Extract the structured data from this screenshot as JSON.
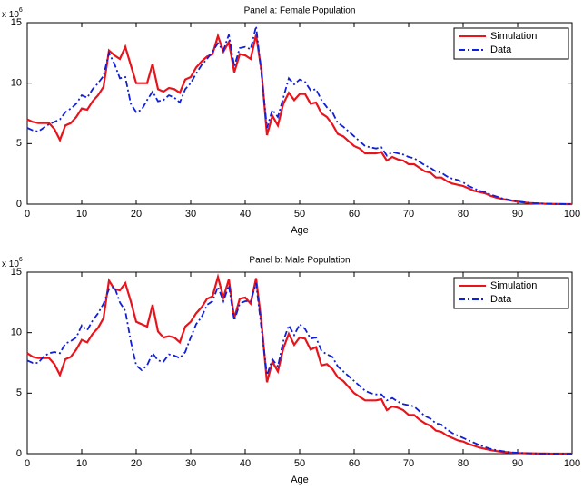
{
  "chart_data": [
    {
      "type": "line",
      "title": "Panel a: Female Population",
      "xlabel": "Age",
      "y_multiplier": {
        "base": "x 10",
        "exponent": "6"
      },
      "xlim": [
        0,
        100
      ],
      "xticks": [
        0,
        10,
        20,
        30,
        40,
        50,
        60,
        70,
        80,
        90,
        100
      ],
      "ylim": [
        0,
        15
      ],
      "yticks": [
        0,
        5,
        10,
        15
      ],
      "legend": "upper right",
      "x": [
        0,
        1,
        2,
        3,
        4,
        5,
        6,
        7,
        8,
        9,
        10,
        11,
        12,
        13,
        14,
        15,
        16,
        17,
        18,
        19,
        20,
        21,
        22,
        23,
        24,
        25,
        26,
        27,
        28,
        29,
        30,
        31,
        32,
        33,
        34,
        35,
        36,
        37,
        38,
        39,
        40,
        41,
        42,
        43,
        44,
        45,
        46,
        47,
        48,
        49,
        50,
        51,
        52,
        53,
        54,
        55,
        56,
        57,
        58,
        59,
        60,
        61,
        62,
        63,
        64,
        65,
        66,
        67,
        68,
        69,
        70,
        71,
        72,
        73,
        74,
        75,
        76,
        77,
        78,
        79,
        80,
        81,
        82,
        83,
        84,
        85,
        86,
        87,
        88,
        89,
        90,
        91,
        92,
        93,
        94,
        95,
        96,
        97,
        98,
        99,
        100
      ],
      "series": [
        {
          "name": "Simulation",
          "color": "#e8141c",
          "dash": "solid",
          "values": [
            7.0,
            6.8,
            6.7,
            6.7,
            6.7,
            6.2,
            5.3,
            6.5,
            6.7,
            7.2,
            7.9,
            7.8,
            8.5,
            9.0,
            9.7,
            12.7,
            12.3,
            12.0,
            13.0,
            11.5,
            10.0,
            10.0,
            10.0,
            11.6,
            9.5,
            9.3,
            9.6,
            9.5,
            9.2,
            10.3,
            10.5,
            11.3,
            11.8,
            12.2,
            12.4,
            13.9,
            12.6,
            13.4,
            10.9,
            12.4,
            12.3,
            12.0,
            14.0,
            11.0,
            5.7,
            7.3,
            6.5,
            8.3,
            9.2,
            8.6,
            9.1,
            9.1,
            8.3,
            8.4,
            7.5,
            7.2,
            6.6,
            5.8,
            5.6,
            5.2,
            4.8,
            4.6,
            4.2,
            4.2,
            4.2,
            4.3,
            3.6,
            3.9,
            3.7,
            3.6,
            3.3,
            3.3,
            3.0,
            2.7,
            2.6,
            2.2,
            2.2,
            1.9,
            1.7,
            1.6,
            1.5,
            1.3,
            1.1,
            1.0,
            0.9,
            0.7,
            0.55,
            0.45,
            0.35,
            0.28,
            0.2,
            0.15,
            0.1,
            0.07,
            0.05,
            0.03,
            0.02,
            0.01,
            0.01,
            0,
            0
          ]
        },
        {
          "name": "Data",
          "color": "#1020d8",
          "dash": "dashdot",
          "values": [
            6.3,
            6.1,
            6.0,
            6.3,
            6.6,
            6.8,
            7.0,
            7.6,
            7.9,
            8.3,
            9.0,
            8.8,
            9.5,
            10.0,
            10.6,
            12.5,
            11.6,
            10.4,
            10.5,
            8.3,
            7.6,
            7.8,
            8.6,
            9.3,
            8.5,
            8.6,
            9.0,
            8.8,
            8.4,
            9.5,
            10.0,
            10.8,
            11.5,
            12.0,
            12.6,
            13.3,
            12.7,
            14.0,
            11.4,
            12.9,
            13.0,
            12.8,
            14.7,
            10.7,
            6.3,
            7.8,
            7.2,
            8.8,
            10.4,
            9.9,
            10.3,
            10.1,
            9.4,
            9.5,
            8.6,
            8.0,
            7.6,
            6.7,
            6.4,
            6.0,
            5.6,
            5.2,
            4.8,
            4.7,
            4.6,
            4.7,
            4.0,
            4.3,
            4.2,
            4.1,
            3.9,
            3.8,
            3.5,
            3.2,
            3.0,
            2.7,
            2.6,
            2.3,
            2.1,
            2.0,
            1.8,
            1.5,
            1.3,
            1.1,
            1.0,
            0.8,
            0.65,
            0.5,
            0.4,
            0.3,
            0.22,
            0.17,
            0.12,
            0.08,
            0.06,
            0.04,
            0.03,
            0.02,
            0.01,
            0.01,
            0
          ]
        }
      ]
    },
    {
      "type": "line",
      "title": "Panel b: Male Population",
      "xlabel": "Age",
      "y_multiplier": {
        "base": "x 10",
        "exponent": "6"
      },
      "xlim": [
        0,
        100
      ],
      "xticks": [
        0,
        10,
        20,
        30,
        40,
        50,
        60,
        70,
        80,
        90,
        100
      ],
      "ylim": [
        0,
        15
      ],
      "yticks": [
        0,
        5,
        10,
        15
      ],
      "legend": "upper right",
      "x": [
        0,
        1,
        2,
        3,
        4,
        5,
        6,
        7,
        8,
        9,
        10,
        11,
        12,
        13,
        14,
        15,
        16,
        17,
        18,
        19,
        20,
        21,
        22,
        23,
        24,
        25,
        26,
        27,
        28,
        29,
        30,
        31,
        32,
        33,
        34,
        35,
        36,
        37,
        38,
        39,
        40,
        41,
        42,
        43,
        44,
        45,
        46,
        47,
        48,
        49,
        50,
        51,
        52,
        53,
        54,
        55,
        56,
        57,
        58,
        59,
        60,
        61,
        62,
        63,
        64,
        65,
        66,
        67,
        68,
        69,
        70,
        71,
        72,
        73,
        74,
        75,
        76,
        77,
        78,
        79,
        80,
        81,
        82,
        83,
        84,
        85,
        86,
        87,
        88,
        89,
        90,
        91,
        92,
        93,
        94,
        95,
        96,
        97,
        98,
        99,
        100
      ],
      "series": [
        {
          "name": "Simulation",
          "color": "#e8141c",
          "dash": "solid",
          "values": [
            8.3,
            8.0,
            7.9,
            7.9,
            7.9,
            7.4,
            6.5,
            7.8,
            8.0,
            8.6,
            9.4,
            9.2,
            9.9,
            10.4,
            11.2,
            14.3,
            13.6,
            13.5,
            14.1,
            12.6,
            10.9,
            10.7,
            10.5,
            12.3,
            10.1,
            9.6,
            9.7,
            9.6,
            9.2,
            10.5,
            10.9,
            11.6,
            12.1,
            12.8,
            13.0,
            14.6,
            12.9,
            14.4,
            11.2,
            12.8,
            12.9,
            12.4,
            14.5,
            10.8,
            5.9,
            7.6,
            6.8,
            8.7,
            9.9,
            9.0,
            9.6,
            9.5,
            8.6,
            8.8,
            7.3,
            7.4,
            7.0,
            6.3,
            6.0,
            5.5,
            5.0,
            4.7,
            4.4,
            4.4,
            4.4,
            4.5,
            3.6,
            3.9,
            3.8,
            3.6,
            3.2,
            3.2,
            2.8,
            2.5,
            2.3,
            1.9,
            1.8,
            1.5,
            1.3,
            1.1,
            1.0,
            0.8,
            0.65,
            0.5,
            0.4,
            0.3,
            0.22,
            0.16,
            0.12,
            0.08,
            0.05,
            0.04,
            0.03,
            0.02,
            0.01,
            0.01,
            0,
            0,
            0,
            0,
            0
          ]
        },
        {
          "name": "Data",
          "color": "#1020d8",
          "dash": "dashdot",
          "values": [
            7.7,
            7.5,
            7.5,
            8.0,
            8.3,
            8.4,
            8.3,
            9.1,
            9.3,
            9.6,
            10.6,
            10.2,
            11.0,
            11.6,
            12.4,
            13.6,
            13.8,
            12.5,
            11.8,
            9.3,
            7.3,
            6.9,
            7.3,
            8.3,
            7.7,
            7.6,
            8.2,
            8.1,
            7.9,
            8.4,
            9.6,
            10.7,
            11.3,
            12.3,
            12.6,
            13.8,
            12.6,
            13.9,
            11.0,
            12.4,
            12.6,
            12.6,
            14.1,
            10.3,
            6.5,
            7.8,
            7.2,
            9.3,
            10.6,
            9.8,
            10.7,
            10.3,
            9.5,
            9.6,
            8.5,
            8.2,
            8.0,
            7.2,
            6.8,
            6.4,
            6.0,
            5.6,
            5.2,
            5.0,
            4.9,
            4.9,
            4.4,
            4.6,
            4.3,
            4.1,
            4.0,
            3.9,
            3.5,
            3.1,
            2.9,
            2.5,
            2.4,
            2.0,
            1.7,
            1.5,
            1.3,
            1.1,
            0.9,
            0.7,
            0.55,
            0.4,
            0.3,
            0.22,
            0.15,
            0.1,
            0.07,
            0.05,
            0.03,
            0.02,
            0.01,
            0.01,
            0,
            0,
            0,
            0,
            0
          ]
        }
      ]
    }
  ]
}
